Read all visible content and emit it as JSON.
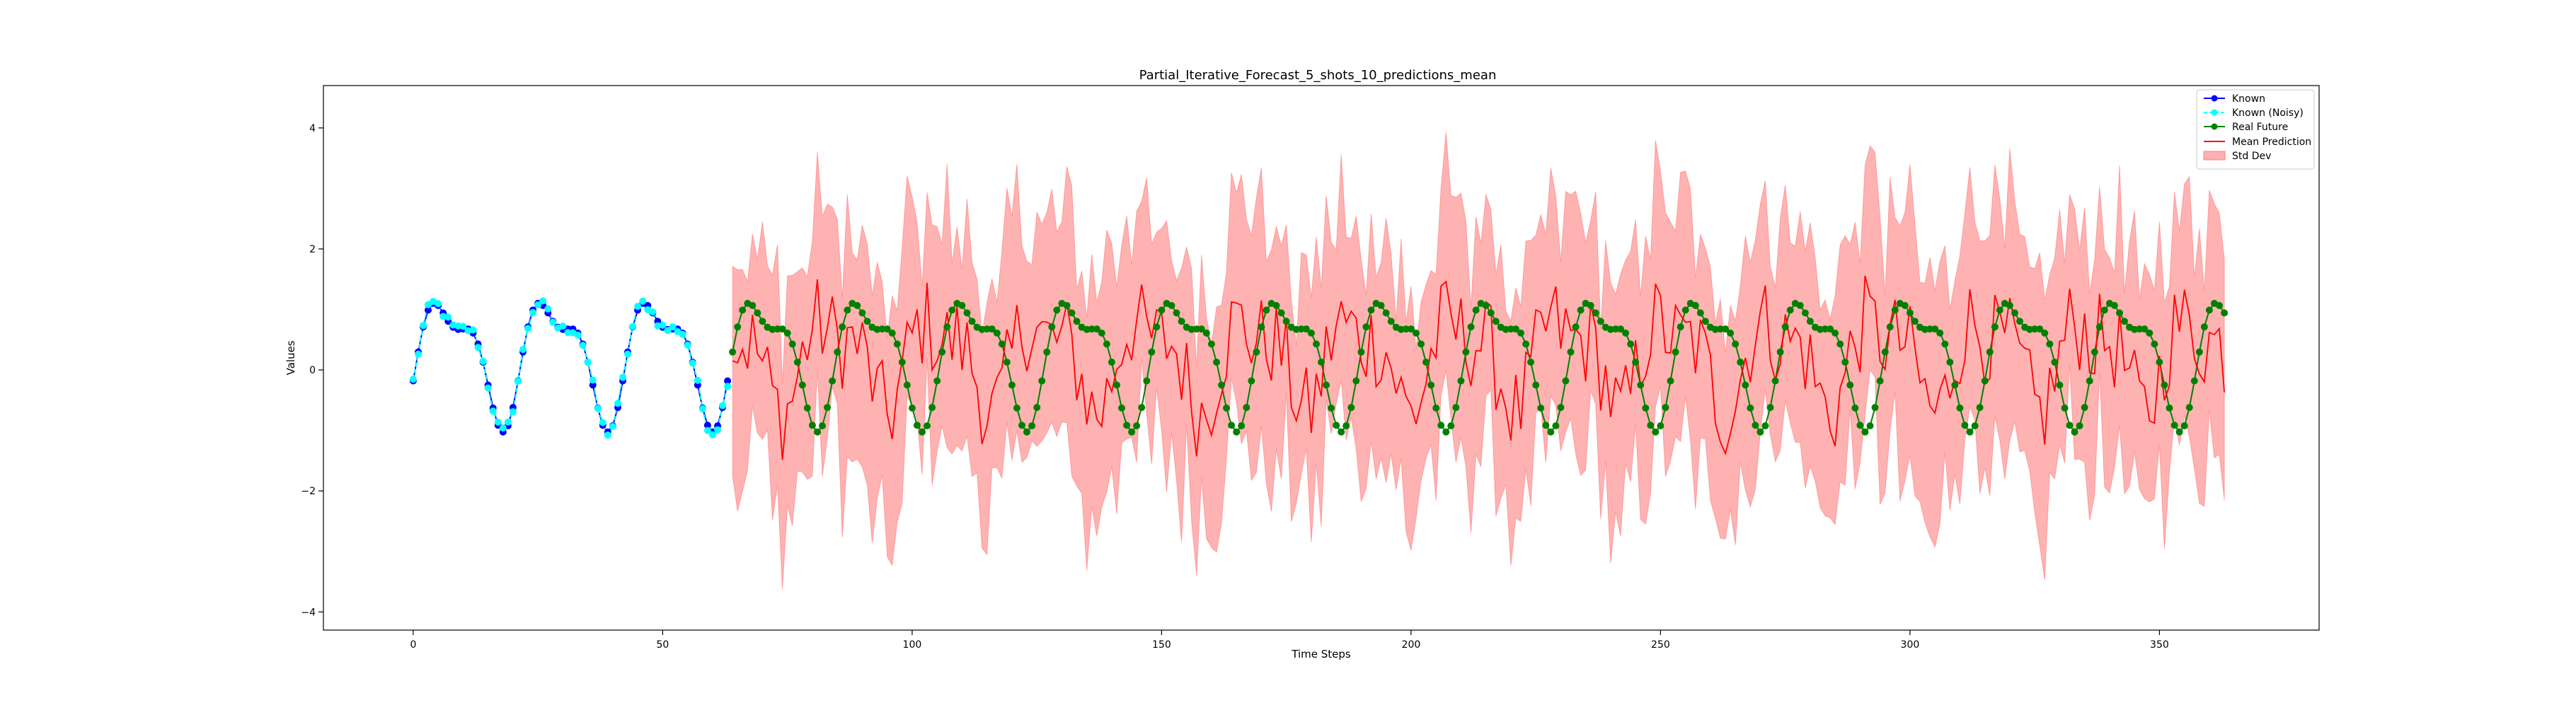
{
  "chart_data": {
    "type": "line",
    "title": "Partial_Iterative_Forecast_5_shots_10_predictions_mean",
    "xlabel": "Time Steps",
    "ylabel": "Values",
    "xlim": [
      -18,
      382
    ],
    "ylim": [
      -4.3,
      4.7
    ],
    "xticks": [
      0,
      50,
      100,
      150,
      200,
      250,
      300,
      350
    ],
    "yticks": [
      -4,
      -2,
      0,
      2,
      4
    ],
    "xtick_labels": [
      "0",
      "50",
      "100",
      "150",
      "200",
      "250",
      "300",
      "350"
    ],
    "ytick_labels": [
      "−4",
      "−2",
      "0",
      "2",
      "4"
    ],
    "grid": false,
    "legend_position": "top-right",
    "signal_model": {
      "period": 21,
      "known_range": [
        0,
        63
      ],
      "future_range": [
        64,
        363
      ]
    },
    "series": [
      {
        "name": "Known",
        "color": "#0000ff",
        "marker": "circle",
        "style": "solid"
      },
      {
        "name": "Known (Noisy)",
        "color": "#00ffff",
        "marker": "circle",
        "style": "dashed"
      },
      {
        "name": "Real Future",
        "color": "#008000",
        "marker": "circle",
        "style": "solid"
      },
      {
        "name": "Mean Prediction",
        "color": "#ff0000",
        "marker": "none",
        "style": "solid"
      },
      {
        "name": "Std Dev",
        "color": "#ffb0b0",
        "marker": "band",
        "style": "fill"
      }
    ]
  }
}
